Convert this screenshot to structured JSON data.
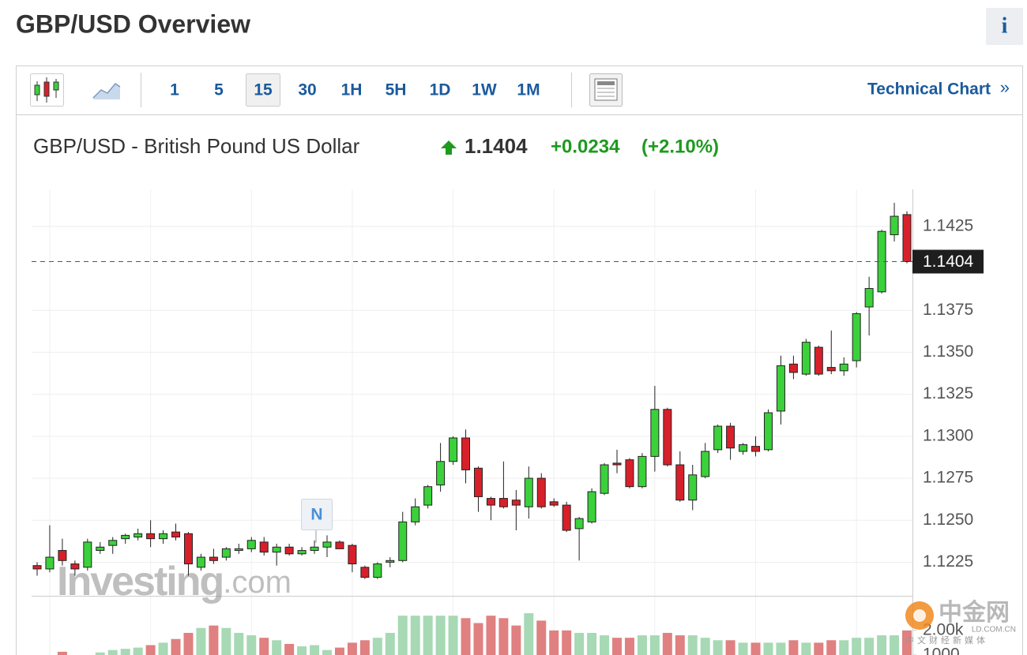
{
  "header": {
    "title": "GBP/USD Overview",
    "info": "i"
  },
  "toolbar": {
    "intervals": [
      "1",
      "5",
      "15",
      "30",
      "1H",
      "5H",
      "1D",
      "1W",
      "1M"
    ],
    "selected": "15",
    "link": "Technical Chart",
    "link_arrow": "»"
  },
  "quote": {
    "name": "GBP/USD - British Pound US Dollar",
    "change": "+0.0234",
    "change_percent": "(+2.10%)"
  },
  "chart_data": {
    "type": "candlestick",
    "last_price": 1.1404,
    "open": [
      1.1223,
      1.1221,
      1.1232,
      1.1224,
      1.1222,
      1.1232,
      1.1235,
      1.1239,
      1.124,
      1.1242,
      1.1239,
      1.1243,
      1.1242,
      1.1222,
      1.1228,
      1.1228,
      1.1232,
      1.1233,
      1.1237,
      1.1231,
      1.1234,
      1.123,
      1.1232,
      1.1234,
      1.1237,
      1.1235,
      1.1222,
      1.1216,
      1.1225,
      1.1226,
      1.1249,
      1.1259,
      1.1271,
      1.1285,
      1.1299,
      1.1281,
      1.1263,
      1.1263,
      1.1262,
      1.1258,
      1.1275,
      1.1261,
      1.1259,
      1.1245,
      1.1249,
      1.1266,
      1.1284,
      1.1286,
      1.127,
      1.1288,
      1.1316,
      1.1283,
      1.1262,
      1.1276,
      1.1292,
      1.1306,
      1.1291,
      1.1294,
      1.1292,
      1.1315,
      1.1343,
      1.1337,
      1.1353,
      1.1341,
      1.1339,
      1.1345,
      1.1377,
      1.1386,
      1.142,
      1.1432
    ],
    "high": [
      1.1225,
      1.1247,
      1.1239,
      1.1226,
      1.1239,
      1.1237,
      1.124,
      1.1242,
      1.1245,
      1.125,
      1.1244,
      1.1248,
      1.1243,
      1.123,
      1.1233,
      1.1234,
      1.1236,
      1.124,
      1.124,
      1.1236,
      1.1236,
      1.1234,
      1.1238,
      1.1241,
      1.1238,
      1.1236,
      1.1223,
      1.1225,
      1.1228,
      1.1255,
      1.1263,
      1.1271,
      1.1296,
      1.13,
      1.1304,
      1.1282,
      1.1264,
      1.1285,
      1.1268,
      1.1282,
      1.1278,
      1.1263,
      1.1261,
      1.1252,
      1.1269,
      1.1284,
      1.1292,
      1.1287,
      1.129,
      1.133,
      1.1317,
      1.1291,
      1.1283,
      1.1296,
      1.1307,
      1.1308,
      1.1296,
      1.13,
      1.1316,
      1.1348,
      1.1348,
      1.1358,
      1.1354,
      1.1363,
      1.1347,
      1.1374,
      1.1395,
      1.1423,
      1.1439,
      1.1434
    ],
    "low": [
      1.1217,
      1.1219,
      1.1223,
      1.1217,
      1.122,
      1.123,
      1.123,
      1.1236,
      1.1238,
      1.1234,
      1.1236,
      1.1238,
      1.1217,
      1.122,
      1.1224,
      1.1226,
      1.123,
      1.1231,
      1.1229,
      1.1223,
      1.1229,
      1.1229,
      1.123,
      1.1228,
      1.1233,
      1.1219,
      1.1215,
      1.1215,
      1.1222,
      1.1225,
      1.1247,
      1.1257,
      1.1267,
      1.1283,
      1.1272,
      1.1255,
      1.125,
      1.1257,
      1.1244,
      1.1251,
      1.1257,
      1.1258,
      1.1243,
      1.1226,
      1.1248,
      1.1265,
      1.1278,
      1.1269,
      1.1269,
      1.1279,
      1.1282,
      1.1261,
      1.1256,
      1.1275,
      1.129,
      1.1286,
      1.1289,
      1.1288,
      1.1291,
      1.1307,
      1.1334,
      1.1336,
      1.1336,
      1.1337,
      1.1336,
      1.1341,
      1.136,
      1.1385,
      1.1416,
      1.1403
    ],
    "close": [
      1.1221,
      1.1228,
      1.1226,
      1.1221,
      1.1237,
      1.1234,
      1.1238,
      1.1241,
      1.1242,
      1.1239,
      1.1242,
      1.124,
      1.1224,
      1.1228,
      1.1226,
      1.1233,
      1.1233,
      1.1238,
      1.1231,
      1.1234,
      1.123,
      1.1232,
      1.1234,
      1.1237,
      1.1233,
      1.1224,
      1.1216,
      1.1224,
      1.1226,
      1.1249,
      1.1258,
      1.127,
      1.1285,
      1.1299,
      1.128,
      1.1264,
      1.1259,
      1.1258,
      1.1259,
      1.1275,
      1.1258,
      1.1259,
      1.1244,
      1.1251,
      1.1267,
      1.1283,
      1.1283,
      1.127,
      1.1288,
      1.1316,
      1.1283,
      1.1262,
      1.1277,
      1.1291,
      1.1306,
      1.1293,
      1.1295,
      1.1291,
      1.1314,
      1.1342,
      1.1338,
      1.1356,
      1.1337,
      1.1339,
      1.1343,
      1.1373,
      1.1388,
      1.1422,
      1.1431,
      1.1404
    ],
    "volume": [
      800,
      850,
      1130,
      900,
      950,
      1100,
      1200,
      1250,
      1300,
      1400,
      1500,
      1650,
      1900,
      2100,
      2200,
      2100,
      1900,
      1800,
      1700,
      1600,
      1450,
      1350,
      1400,
      1200,
      1300,
      1500,
      1600,
      1700,
      1900,
      2600,
      2600,
      2600,
      2600,
      2600,
      2500,
      2300,
      2600,
      2500,
      2200,
      2700,
      2400,
      2000,
      2000,
      1900,
      1900,
      1800,
      1700,
      1700,
      1800,
      1800,
      1900,
      1800,
      1800,
      1700,
      1600,
      1600,
      1500,
      1500,
      1500,
      1500,
      1600,
      1500,
      1500,
      1600,
      1600,
      1700,
      1700,
      1800,
      1800,
      2000
    ],
    "ylim": [
      1.1205,
      1.1447
    ],
    "yticks": [
      1.1225,
      {
        "value": 1.125,
        "label": "1.1250"
      },
      1.1275,
      {
        "value": 1.13,
        "label": "1.1300"
      },
      1.1325,
      {
        "value": 1.135,
        "label": "1.1350"
      },
      1.1375,
      1.1425
    ],
    "volume_ylim": [
      0,
      3250
    ],
    "volume_yticks": [
      1000,
      {
        "value": 2000,
        "label": "2.00k"
      }
    ],
    "grid": true,
    "up_color": "#3bd13b",
    "down_color": "#d8202a",
    "volume_up_color": "#a6d9b4",
    "volume_down_color": "#e08080",
    "watermark_brand": "Investing",
    "watermark_suffix": ".com",
    "news_marker": "N",
    "logo": {
      "name": "中金网",
      "tagline": "中文财经新媒体",
      "site": "LD.COM.CN"
    }
  }
}
